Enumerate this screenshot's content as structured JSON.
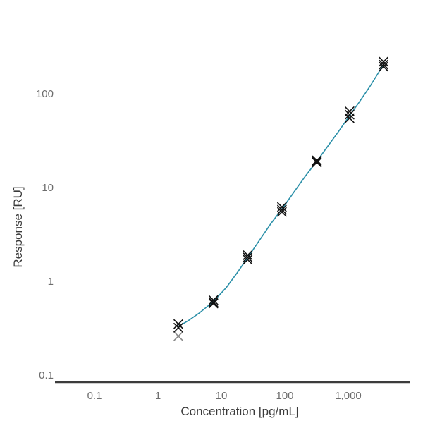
{
  "chart_data": {
    "type": "scatter",
    "xlabel": "Concentration [pg/mL]",
    "ylabel": "Response [RU]",
    "x_scale": "log",
    "y_scale": "log",
    "xlim": [
      0.02,
      8000
    ],
    "ylim": [
      0.08,
      600
    ],
    "grid": false,
    "x_ticks": [
      {
        "value": 0.1,
        "label": "0.1"
      },
      {
        "value": 1,
        "label": "1"
      },
      {
        "value": 10,
        "label": "10"
      },
      {
        "value": 100,
        "label": "100"
      },
      {
        "value": 1000,
        "label": "1,000"
      }
    ],
    "y_ticks": [
      {
        "value": 0.1,
        "label": "0.1"
      },
      {
        "value": 1,
        "label": "1"
      },
      {
        "value": 10,
        "label": "10"
      },
      {
        "value": 100,
        "label": "100"
      }
    ],
    "colors": {
      "curve": "#2a8fa8",
      "marker": "#111111",
      "outlier": "#8a8a8a",
      "axis": "#3c3c3c"
    },
    "series": [
      {
        "kind": "replicates",
        "marker": "x",
        "points": [
          {
            "x": 2.1,
            "y": 0.35
          },
          {
            "x": 2.1,
            "y": 0.32
          },
          {
            "x": 7.5,
            "y": 0.63
          },
          {
            "x": 7.5,
            "y": 0.6
          },
          {
            "x": 7.5,
            "y": 0.58
          },
          {
            "x": 26,
            "y": 1.9
          },
          {
            "x": 26,
            "y": 1.8
          },
          {
            "x": 26,
            "y": 1.7
          },
          {
            "x": 90,
            "y": 6.2
          },
          {
            "x": 90,
            "y": 5.8
          },
          {
            "x": 90,
            "y": 5.5
          },
          {
            "x": 320,
            "y": 19.5
          },
          {
            "x": 320,
            "y": 19
          },
          {
            "x": 320,
            "y": 18.5
          },
          {
            "x": 1050,
            "y": 65
          },
          {
            "x": 1050,
            "y": 60
          },
          {
            "x": 1050,
            "y": 55
          },
          {
            "x": 3600,
            "y": 220
          },
          {
            "x": 3600,
            "y": 205
          },
          {
            "x": 3600,
            "y": 195
          }
        ]
      },
      {
        "kind": "excluded",
        "marker": "x",
        "points": [
          {
            "x": 2.1,
            "y": 0.26
          }
        ]
      },
      {
        "kind": "fit",
        "marker": "line",
        "x": [
          2.1,
          3,
          4.5,
          7.5,
          12,
          18,
          26,
          40,
          60,
          90,
          140,
          210,
          320,
          480,
          700,
          1050,
          1500,
          2200,
          3600
        ],
        "y": [
          0.33,
          0.38,
          0.46,
          0.61,
          0.86,
          1.25,
          1.79,
          2.75,
          4.1,
          5.9,
          9.0,
          13.2,
          19.1,
          27.8,
          39.5,
          58.5,
          82,
          120,
          205
        ]
      }
    ]
  }
}
